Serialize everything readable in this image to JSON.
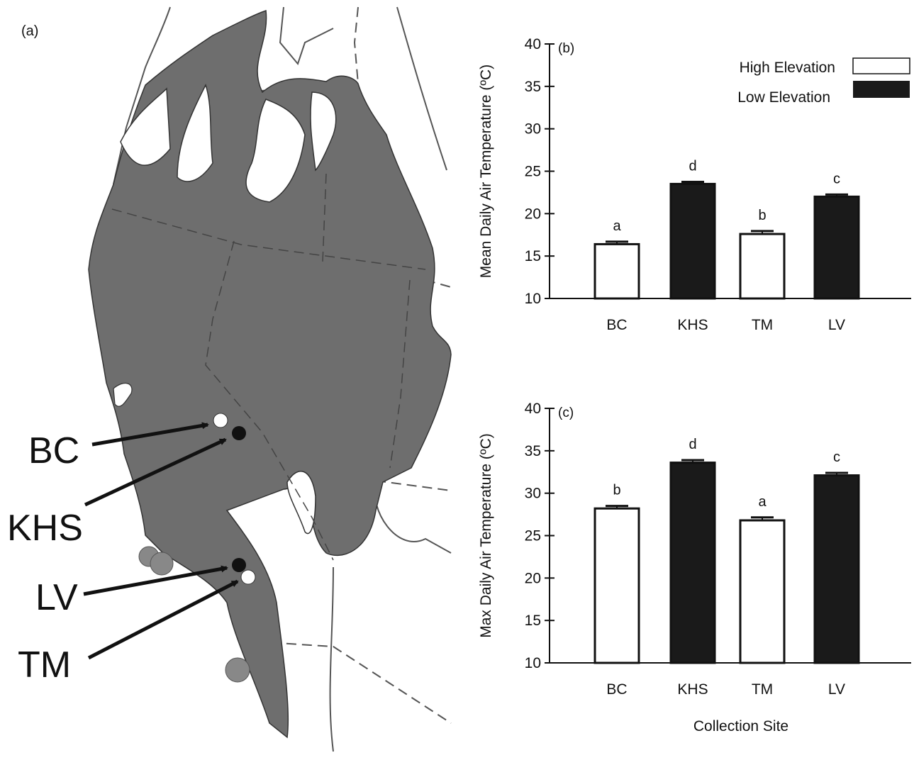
{
  "map": {
    "panel_label": "(a)",
    "sites": [
      {
        "label": "BC",
        "elevation": "High Elevation"
      },
      {
        "label": "KHS",
        "elevation": "Low Elevation"
      },
      {
        "label": "LV",
        "elevation": "Low Elevation"
      },
      {
        "label": "TM",
        "elevation": "High Elevation"
      }
    ]
  },
  "legend": {
    "high_label": "High Elevation",
    "low_label": "Low Elevation",
    "high_color": "#ffffff",
    "low_color": "#1a1a1a"
  },
  "chart_data": [
    {
      "panel_label": "(b)",
      "type": "bar",
      "categories": [
        "BC",
        "KHS",
        "TM",
        "LV"
      ],
      "values": [
        16.4,
        23.5,
        17.6,
        22.0
      ],
      "errors": [
        0.3,
        0.25,
        0.35,
        0.25
      ],
      "fills": [
        "#ffffff",
        "#1a1a1a",
        "#ffffff",
        "#1a1a1a"
      ],
      "letters": [
        "a",
        "d",
        "b",
        "c"
      ],
      "ylabel": "Mean Daily Air Temperature (ºC)",
      "xlabel": "",
      "ylim": [
        10,
        40
      ],
      "yticks": [
        10,
        15,
        20,
        25,
        30,
        35,
        40
      ],
      "legend": "top-right"
    },
    {
      "panel_label": "(c)",
      "type": "bar",
      "categories": [
        "BC",
        "KHS",
        "TM",
        "LV"
      ],
      "values": [
        28.2,
        33.6,
        26.8,
        32.1
      ],
      "errors": [
        0.3,
        0.3,
        0.35,
        0.3
      ],
      "fills": [
        "#ffffff",
        "#1a1a1a",
        "#ffffff",
        "#1a1a1a"
      ],
      "letters": [
        "b",
        "d",
        "a",
        "c"
      ],
      "ylabel": "Max Daily Air Temperature (ºC)",
      "xlabel": "Collection Site",
      "ylim": [
        10,
        40
      ],
      "yticks": [
        10,
        15,
        20,
        25,
        30,
        35,
        40
      ]
    }
  ]
}
